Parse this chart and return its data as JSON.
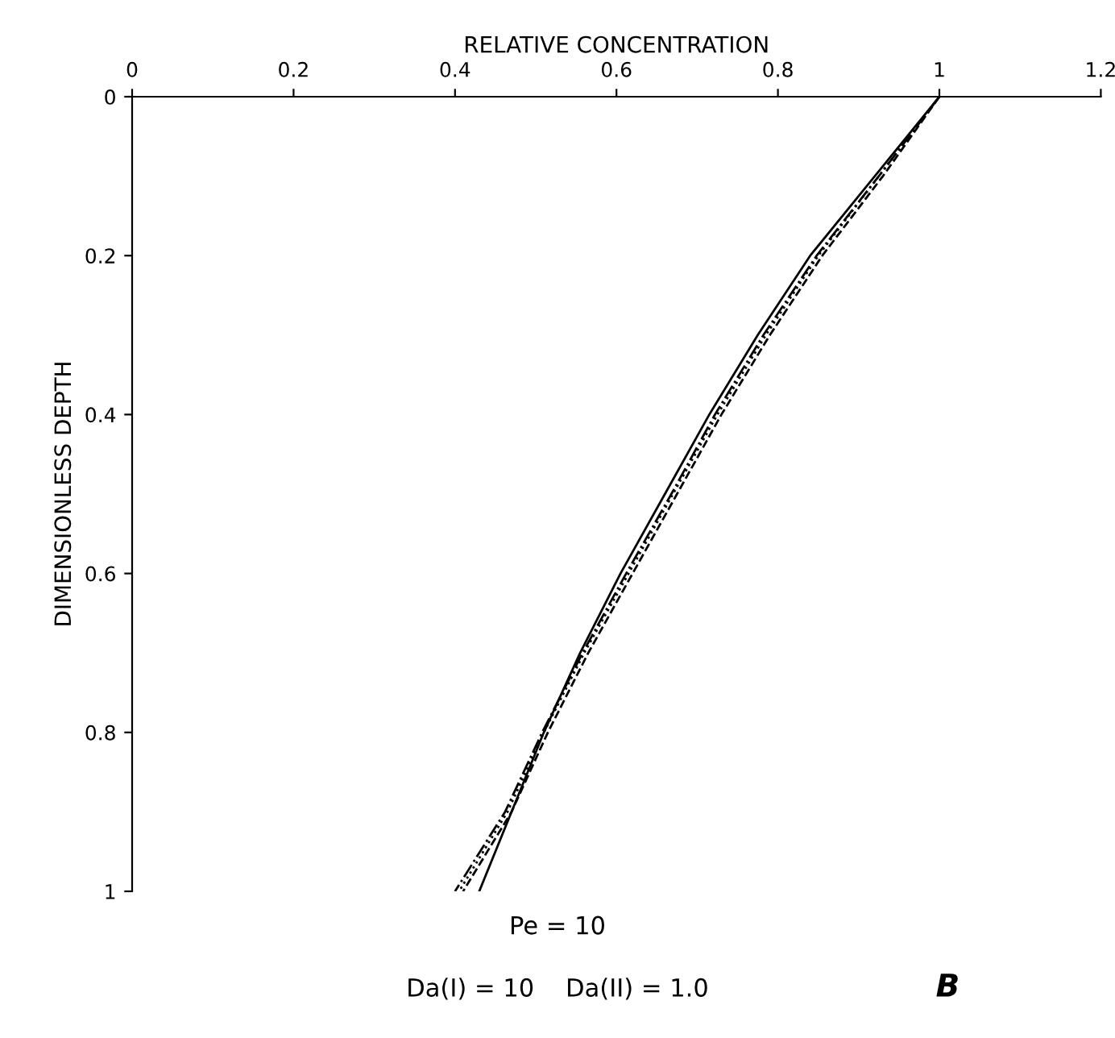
{
  "chart_data": {
    "type": "line",
    "xlabel": "RELATIVE CONCENTRATION",
    "ylabel": "DIMENSIONLESS DEPTH",
    "xlim": [
      0,
      1.2
    ],
    "xticks": [
      0,
      0.2,
      0.4,
      0.6,
      0.8,
      1,
      1.2
    ],
    "ylim": [
      1,
      0
    ],
    "yticks": [
      0,
      0.2,
      0.4,
      0.6,
      0.8,
      1
    ],
    "grid": false,
    "legend": false,
    "series": [
      {
        "color": "#000000",
        "line_style": "solid",
        "x": [
          1.0,
          0.92,
          0.84,
          0.775,
          0.715,
          0.66,
          0.605,
          0.555,
          0.51,
          0.47,
          0.43
        ],
        "values": [
          0,
          0.1,
          0.2,
          0.3,
          0.4,
          0.5,
          0.6,
          0.7,
          0.8,
          0.9,
          1
        ]
      },
      {
        "color": "#000000",
        "line_style": "dashed",
        "x": [
          1.0,
          0.93,
          0.855,
          0.79,
          0.73,
          0.675,
          0.62,
          0.565,
          0.515,
          0.47,
          0.41
        ],
        "values": [
          0,
          0.1,
          0.2,
          0.3,
          0.4,
          0.5,
          0.6,
          0.7,
          0.8,
          0.9,
          1
        ]
      },
      {
        "color": "#000000",
        "line_style": "dotted",
        "x": [
          1.0,
          0.925,
          0.85,
          0.785,
          0.725,
          0.67,
          0.615,
          0.56,
          0.51,
          0.465,
          0.405
        ],
        "values": [
          0,
          0.1,
          0.2,
          0.3,
          0.4,
          0.5,
          0.6,
          0.7,
          0.8,
          0.9,
          1
        ]
      },
      {
        "color": "#000000",
        "line_style": "dashdot",
        "x": [
          1.0,
          0.925,
          0.848,
          0.782,
          0.722,
          0.668,
          0.612,
          0.558,
          0.508,
          0.462,
          0.4
        ],
        "values": [
          0,
          0.1,
          0.2,
          0.3,
          0.4,
          0.5,
          0.6,
          0.7,
          0.8,
          0.9,
          1
        ]
      }
    ],
    "annotations": [
      "Pe = 10",
      "Da(I) = 10    Da(II) = 1.0",
      "B"
    ]
  }
}
